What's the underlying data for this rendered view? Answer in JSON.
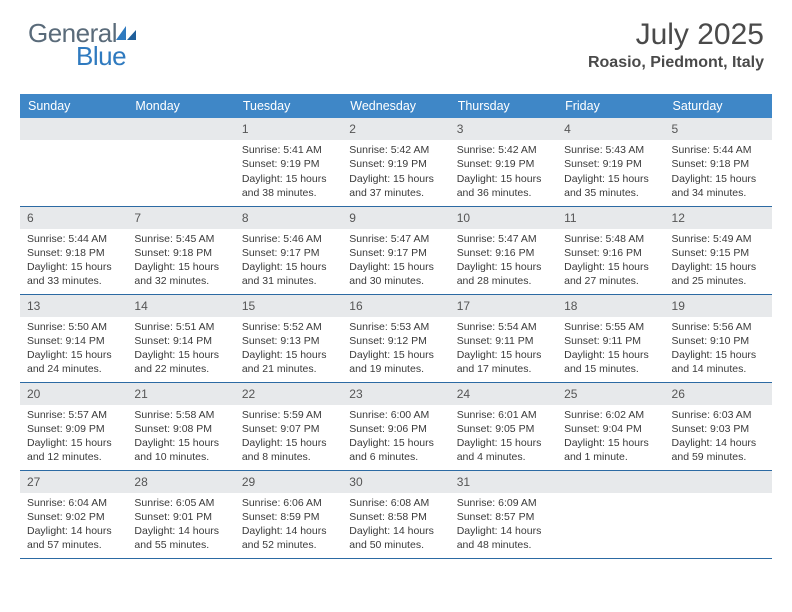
{
  "logo": {
    "text_general": "General",
    "text_blue": "Blue"
  },
  "title": "July 2025",
  "location": "Roasio, Piedmont, Italy",
  "colors": {
    "header_bg": "#3f87c7",
    "header_text": "#ffffff",
    "daynum_bg": "#e7e9eb",
    "row_border": "#2c6aa3",
    "logo_gray": "#5a6b7a",
    "logo_blue": "#2f7abf",
    "body_text": "#3a3a3a"
  },
  "weekdays": [
    "Sunday",
    "Monday",
    "Tuesday",
    "Wednesday",
    "Thursday",
    "Friday",
    "Saturday"
  ],
  "weeks": [
    [
      null,
      null,
      {
        "n": "1",
        "sunrise": "5:41 AM",
        "sunset": "9:19 PM",
        "daylight": "15 hours and 38 minutes."
      },
      {
        "n": "2",
        "sunrise": "5:42 AM",
        "sunset": "9:19 PM",
        "daylight": "15 hours and 37 minutes."
      },
      {
        "n": "3",
        "sunrise": "5:42 AM",
        "sunset": "9:19 PM",
        "daylight": "15 hours and 36 minutes."
      },
      {
        "n": "4",
        "sunrise": "5:43 AM",
        "sunset": "9:19 PM",
        "daylight": "15 hours and 35 minutes."
      },
      {
        "n": "5",
        "sunrise": "5:44 AM",
        "sunset": "9:18 PM",
        "daylight": "15 hours and 34 minutes."
      }
    ],
    [
      {
        "n": "6",
        "sunrise": "5:44 AM",
        "sunset": "9:18 PM",
        "daylight": "15 hours and 33 minutes."
      },
      {
        "n": "7",
        "sunrise": "5:45 AM",
        "sunset": "9:18 PM",
        "daylight": "15 hours and 32 minutes."
      },
      {
        "n": "8",
        "sunrise": "5:46 AM",
        "sunset": "9:17 PM",
        "daylight": "15 hours and 31 minutes."
      },
      {
        "n": "9",
        "sunrise": "5:47 AM",
        "sunset": "9:17 PM",
        "daylight": "15 hours and 30 minutes."
      },
      {
        "n": "10",
        "sunrise": "5:47 AM",
        "sunset": "9:16 PM",
        "daylight": "15 hours and 28 minutes."
      },
      {
        "n": "11",
        "sunrise": "5:48 AM",
        "sunset": "9:16 PM",
        "daylight": "15 hours and 27 minutes."
      },
      {
        "n": "12",
        "sunrise": "5:49 AM",
        "sunset": "9:15 PM",
        "daylight": "15 hours and 25 minutes."
      }
    ],
    [
      {
        "n": "13",
        "sunrise": "5:50 AM",
        "sunset": "9:14 PM",
        "daylight": "15 hours and 24 minutes."
      },
      {
        "n": "14",
        "sunrise": "5:51 AM",
        "sunset": "9:14 PM",
        "daylight": "15 hours and 22 minutes."
      },
      {
        "n": "15",
        "sunrise": "5:52 AM",
        "sunset": "9:13 PM",
        "daylight": "15 hours and 21 minutes."
      },
      {
        "n": "16",
        "sunrise": "5:53 AM",
        "sunset": "9:12 PM",
        "daylight": "15 hours and 19 minutes."
      },
      {
        "n": "17",
        "sunrise": "5:54 AM",
        "sunset": "9:11 PM",
        "daylight": "15 hours and 17 minutes."
      },
      {
        "n": "18",
        "sunrise": "5:55 AM",
        "sunset": "9:11 PM",
        "daylight": "15 hours and 15 minutes."
      },
      {
        "n": "19",
        "sunrise": "5:56 AM",
        "sunset": "9:10 PM",
        "daylight": "15 hours and 14 minutes."
      }
    ],
    [
      {
        "n": "20",
        "sunrise": "5:57 AM",
        "sunset": "9:09 PM",
        "daylight": "15 hours and 12 minutes."
      },
      {
        "n": "21",
        "sunrise": "5:58 AM",
        "sunset": "9:08 PM",
        "daylight": "15 hours and 10 minutes."
      },
      {
        "n": "22",
        "sunrise": "5:59 AM",
        "sunset": "9:07 PM",
        "daylight": "15 hours and 8 minutes."
      },
      {
        "n": "23",
        "sunrise": "6:00 AM",
        "sunset": "9:06 PM",
        "daylight": "15 hours and 6 minutes."
      },
      {
        "n": "24",
        "sunrise": "6:01 AM",
        "sunset": "9:05 PM",
        "daylight": "15 hours and 4 minutes."
      },
      {
        "n": "25",
        "sunrise": "6:02 AM",
        "sunset": "9:04 PM",
        "daylight": "15 hours and 1 minute."
      },
      {
        "n": "26",
        "sunrise": "6:03 AM",
        "sunset": "9:03 PM",
        "daylight": "14 hours and 59 minutes."
      }
    ],
    [
      {
        "n": "27",
        "sunrise": "6:04 AM",
        "sunset": "9:02 PM",
        "daylight": "14 hours and 57 minutes."
      },
      {
        "n": "28",
        "sunrise": "6:05 AM",
        "sunset": "9:01 PM",
        "daylight": "14 hours and 55 minutes."
      },
      {
        "n": "29",
        "sunrise": "6:06 AM",
        "sunset": "8:59 PM",
        "daylight": "14 hours and 52 minutes."
      },
      {
        "n": "30",
        "sunrise": "6:08 AM",
        "sunset": "8:58 PM",
        "daylight": "14 hours and 50 minutes."
      },
      {
        "n": "31",
        "sunrise": "6:09 AM",
        "sunset": "8:57 PM",
        "daylight": "14 hours and 48 minutes."
      },
      null,
      null
    ]
  ],
  "labels": {
    "sunrise": "Sunrise:",
    "sunset": "Sunset:",
    "daylight": "Daylight:"
  }
}
